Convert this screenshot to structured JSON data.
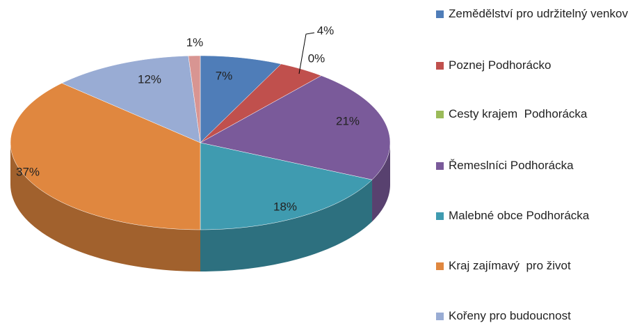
{
  "chart_data": {
    "type": "pie",
    "categories": [
      "Zemědělství pro udržitelný venkov",
      "Poznej Podhorácko",
      "Cesty krajem  Podhorácka",
      "Řemeslníci Podhorácka",
      "Malebné obce Podhorácka",
      "Kraj zajímavý  pro život",
      "Kořeny pro budoucnost",
      null
    ],
    "values": [
      7,
      4,
      0,
      21,
      18,
      37,
      12,
      1
    ],
    "value_labels": [
      "7%",
      "4%",
      "0%",
      "21%",
      "18%",
      "37%",
      "12%",
      "1%"
    ],
    "colors": [
      "#4f7db8",
      "#c0504d",
      "#9bbb59",
      "#7a5a9a",
      "#3f9bb0",
      "#e0873f",
      "#99acd4",
      "#d89592"
    ],
    "legend": "right"
  }
}
